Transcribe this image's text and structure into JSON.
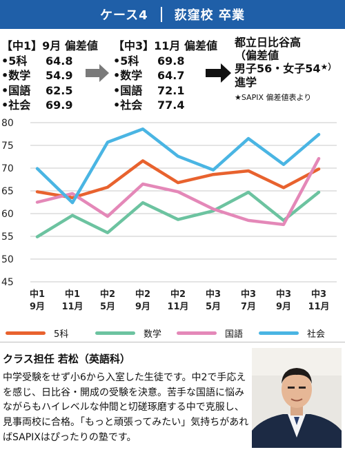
{
  "header": {
    "case": "ケース4",
    "school": "荻窪校 卒業"
  },
  "left_scores": {
    "title": "【中1】9月 偏差値",
    "rows": [
      {
        "label": "•5科",
        "value": "64.8"
      },
      {
        "label": "•数学",
        "value": "54.9"
      },
      {
        "label": "•国語",
        "value": "62.5"
      },
      {
        "label": "•社会",
        "value": "69.9"
      }
    ]
  },
  "right_scores": {
    "title": "【中3】11月 偏差値",
    "rows": [
      {
        "label": "•5科",
        "value": "69.8"
      },
      {
        "label": "•数学",
        "value": "64.7"
      },
      {
        "label": "•国語",
        "value": "72.1"
      },
      {
        "label": "•社会",
        "value": "77.4"
      }
    ]
  },
  "result": {
    "school": "都立日比谷高",
    "paren_open": "（偏差値",
    "scores": "男子56・女子54",
    "star_paren": "★）",
    "outcome": "進学",
    "note": "★SAPIX 偏差値表より"
  },
  "chart_data": {
    "type": "line",
    "categories": [
      "中1 9月",
      "中1 11月",
      "中2 5月",
      "中2 9月",
      "中2 11月",
      "中3 5月",
      "中3 7月",
      "中3 9月",
      "中3 11月"
    ],
    "x_tick_lines": [
      [
        "中1",
        "9月"
      ],
      [
        "中1",
        "11月"
      ],
      [
        "中2",
        "5月"
      ],
      [
        "中2",
        "9月"
      ],
      [
        "中2",
        "11月"
      ],
      [
        "中3",
        "5月"
      ],
      [
        "中3",
        "7月"
      ],
      [
        "中3",
        "9月"
      ],
      [
        "中3",
        "11月"
      ]
    ],
    "ylim": [
      45,
      80
    ],
    "yticks": [
      45,
      50,
      55,
      60,
      65,
      70,
      75,
      80
    ],
    "grid": true,
    "legend": "bottom",
    "series": [
      {
        "name": "5科",
        "color": "#e8622e",
        "values": [
          64.8,
          63.5,
          65.8,
          71.6,
          66.8,
          68.6,
          69.4,
          65.7,
          69.8
        ]
      },
      {
        "name": "数学",
        "color": "#6cc3a0",
        "values": [
          54.9,
          59.6,
          55.8,
          62.4,
          58.7,
          60.6,
          64.7,
          58.5,
          64.7
        ]
      },
      {
        "name": "国語",
        "color": "#e488b8",
        "values": [
          62.5,
          64.4,
          59.4,
          66.5,
          64.8,
          61.0,
          58.5,
          57.6,
          72.1
        ]
      },
      {
        "name": "社会",
        "color": "#4ab5e3",
        "values": [
          69.9,
          62.4,
          75.7,
          78.6,
          72.6,
          69.6,
          76.5,
          70.8,
          77.4
        ]
      }
    ]
  },
  "teacher": {
    "title": "クラス担任 若松（英語科）"
  },
  "body_text": "中学受験をせず小6から入室した生徒です。中2で手応えを感じ、日比谷・開成の受験を決意。苦手な国語に悩みながらもハイレベルな仲間と切磋琢磨する中で克服し、見事両校に合格。「もっと頑張ってみたい」気持ちがあればSAPIXはぴったりの塾です。"
}
